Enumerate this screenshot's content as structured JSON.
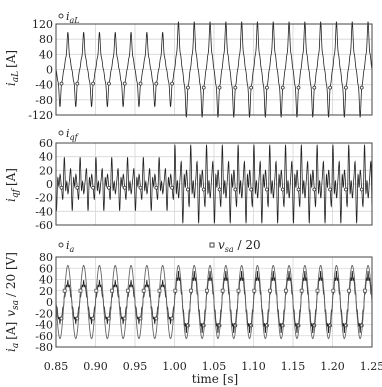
{
  "chart_data": [
    {
      "type": "line",
      "ylabel": "i_aL [A]",
      "ylim": [
        -120,
        120
      ],
      "yticks": [
        -120,
        -80,
        -40,
        0,
        40,
        80,
        120
      ],
      "xlim": [
        0.85,
        1.25
      ],
      "grid": true,
      "legend": [
        {
          "marker": "circle",
          "label": "i_aL"
        }
      ],
      "series": [
        {
          "name": "i_aL",
          "frequency_hz": 50,
          "waveform": "distorted-nonlinear-load-current",
          "t_step_s": 1.0,
          "segments": [
            {
              "t_start": 0.85,
              "t_end": 1.0,
              "peak_A": 78
            },
            {
              "t_start": 1.0,
              "t_end": 1.25,
              "peak_A": 100
            }
          ]
        }
      ]
    },
    {
      "type": "line",
      "ylabel": "i_qf [A]",
      "ylim": [
        -60,
        60
      ],
      "yticks": [
        -60,
        -40,
        -20,
        0,
        20,
        40,
        60
      ],
      "xlim": [
        0.85,
        1.25
      ],
      "grid": true,
      "legend": [
        {
          "marker": "circle",
          "label": "i_qf"
        }
      ],
      "series": [
        {
          "name": "i_qf",
          "frequency_hz": 50,
          "waveform": "compensating-filter-current",
          "t_step_s": 1.0,
          "segments": [
            {
              "t_start": 0.85,
              "t_end": 1.0,
              "peak_A": 30
            },
            {
              "t_start": 1.0,
              "t_end": 1.25,
              "peak_A": 44
            }
          ]
        }
      ]
    },
    {
      "type": "line",
      "ylabel": "i_a [A]   v_sa / 20 [V]",
      "ylim": [
        -80,
        80
      ],
      "yticks": [
        -80,
        -60,
        -40,
        -20,
        0,
        20,
        40,
        60,
        80
      ],
      "xlim": [
        0.85,
        1.25
      ],
      "xticks": [
        0.85,
        0.9,
        0.95,
        1.0,
        1.05,
        1.1,
        1.15,
        1.2,
        1.25
      ],
      "xtick_labels": [
        "0.85",
        "0.90",
        "0.95",
        "1.00",
        "1.05",
        "1.10",
        "1.15",
        "1.20",
        "1.25"
      ],
      "xlabel": "time [s]",
      "grid": true,
      "legend": [
        {
          "marker": "circle",
          "label": "i_a"
        },
        {
          "marker": "square",
          "label": "v_sa / 20"
        }
      ],
      "series": [
        {
          "name": "i_a",
          "frequency_hz": 50,
          "waveform": "sinusoidal-with-ripple",
          "t_step_s": 1.0,
          "segments": [
            {
              "t_start": 0.85,
              "t_end": 1.0,
              "peak_A": 33
            },
            {
              "t_start": 1.0,
              "t_end": 1.25,
              "peak_A": 47
            }
          ]
        },
        {
          "name": "v_sa / 20",
          "frequency_hz": 50,
          "waveform": "sinusoidal",
          "amplitude": 65
        }
      ]
    }
  ],
  "labels": {
    "p1_y": "i",
    "p1_ysub": "aL",
    "p1_yunit": "[A]",
    "p1_leg": "i",
    "p1_legsub": "aL",
    "p2_y": "i",
    "p2_ysub": "qf",
    "p2_yunit": "[A]",
    "p2_leg": "i",
    "p2_legsub": "qf",
    "p3_y1": "i",
    "p3_y1sub": "a",
    "p3_y1unit": "[A]",
    "p3_y2": "v",
    "p3_y2sub": "sa",
    "p3_y2unit": "/ 20 [V]",
    "p3_leg1": "i",
    "p3_leg1sub": "a",
    "p3_leg2": "v",
    "p3_leg2sub": "sa",
    "p3_leg2tail": " / 20",
    "xlabel": "time [s]"
  }
}
